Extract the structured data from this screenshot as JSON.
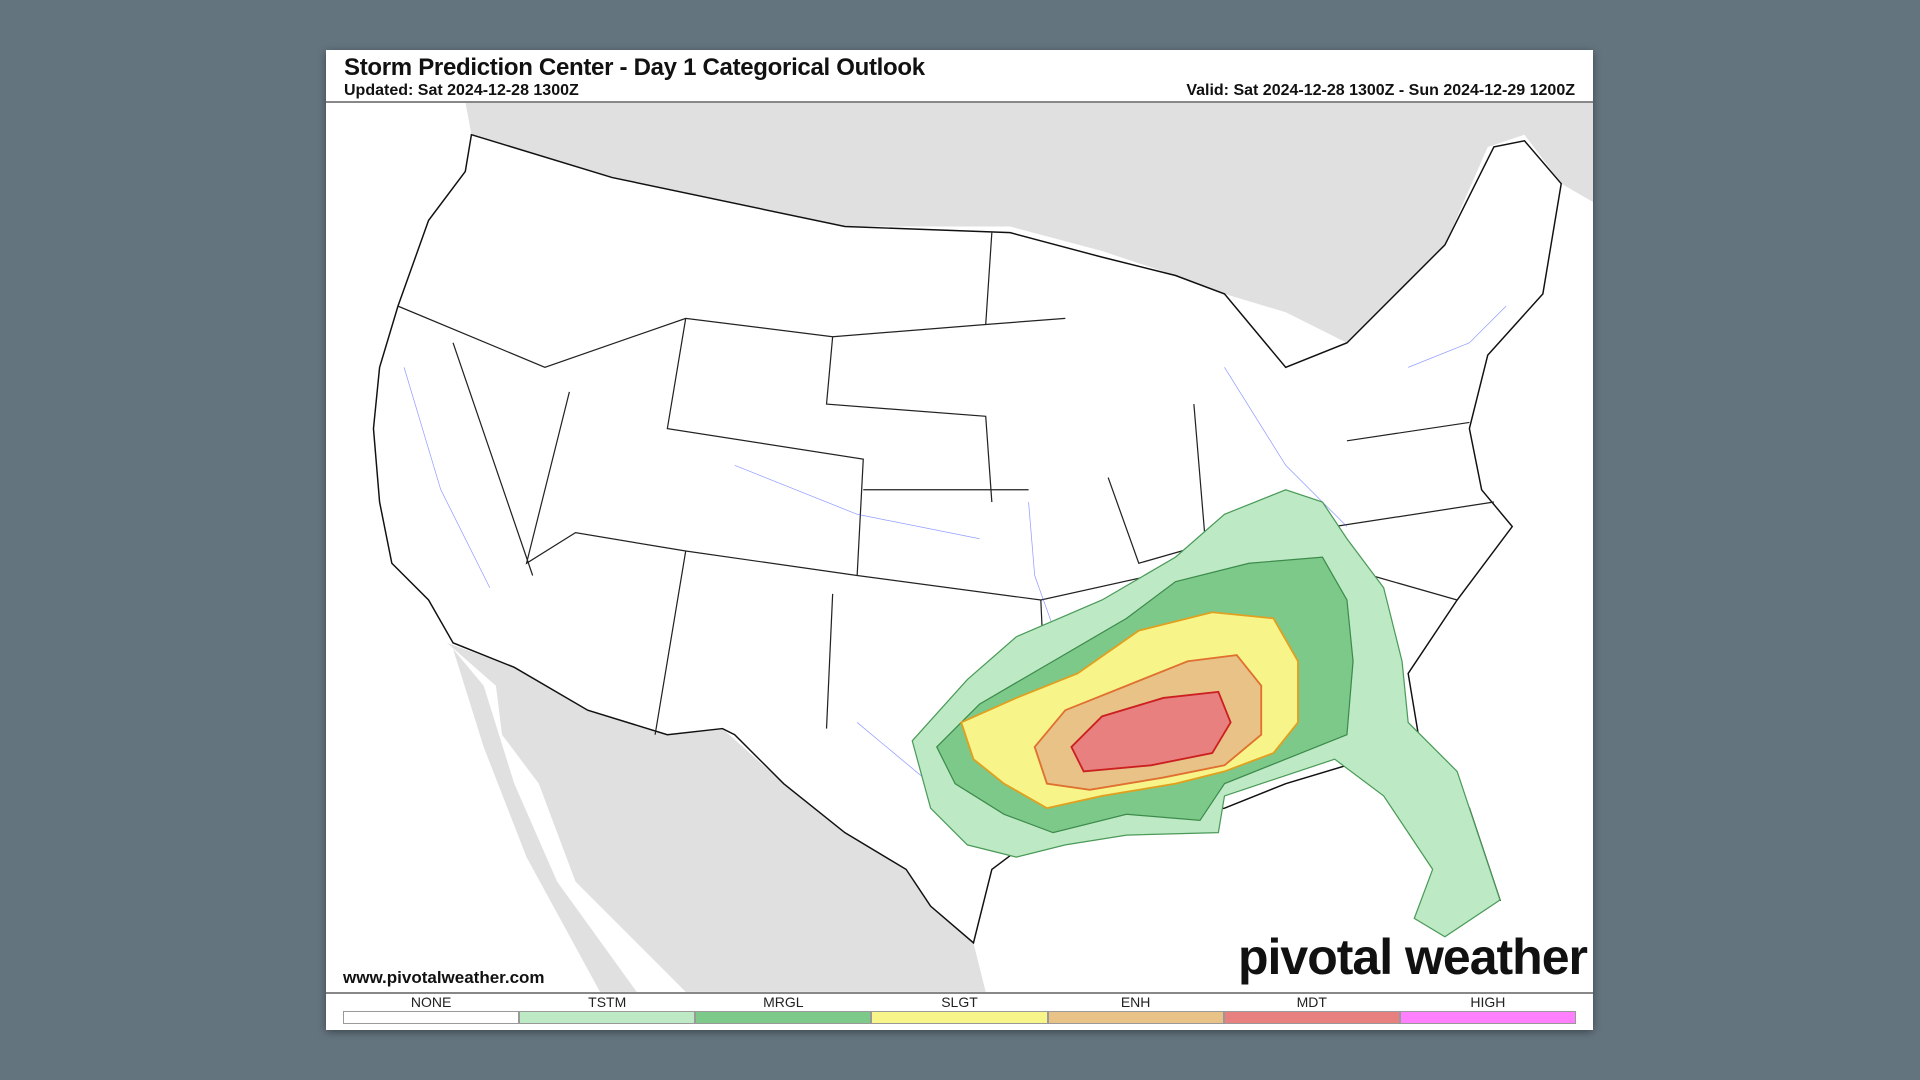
{
  "header": {
    "title": "Storm Prediction Center - Day 1 Categorical Outlook",
    "updated": "Updated: Sat 2024-12-28 1300Z",
    "valid": "Valid: Sat 2024-12-28 1300Z - Sun 2024-12-29 1200Z"
  },
  "footer": {
    "website": "www.pivotalweather.com",
    "logo_text": "pivotal weather"
  },
  "legend": [
    {
      "label": "NONE",
      "color": "#ffffff"
    },
    {
      "label": "TSTM",
      "color": "#bde9c5"
    },
    {
      "label": "MRGL",
      "color": "#7cc98a"
    },
    {
      "label": "SLGT",
      "color": "#f7f58a"
    },
    {
      "label": "ENH",
      "color": "#e8c287"
    },
    {
      "label": "MDT",
      "color": "#e88080"
    },
    {
      "label": "HIGH",
      "color": "#ff80ff"
    }
  ],
  "colors": {
    "background": "#64747f",
    "land_outside": "#e0e0e0",
    "roads_rivers": "#4a5cff"
  }
}
